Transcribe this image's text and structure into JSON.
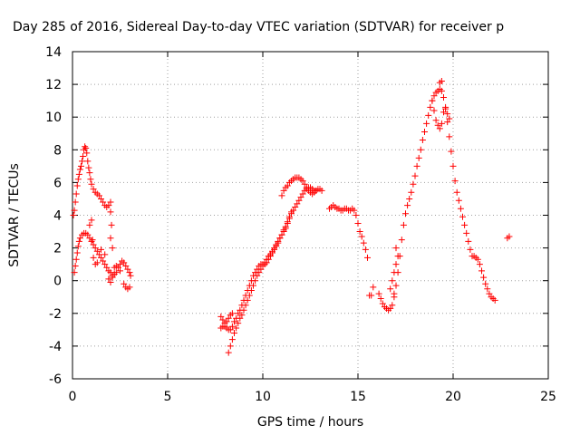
{
  "chart_data": {
    "type": "scatter",
    "title": "Day 285 of 2016, Sidereal Day-to-day VTEC variation (SDTVAR) for receiver p",
    "xlabel": "GPS time / hours",
    "ylabel": "SDTVAR / TECUs",
    "xlim": [
      0,
      25
    ],
    "ylim": [
      -6,
      14
    ],
    "xticks": [
      0,
      5,
      10,
      15,
      20,
      25
    ],
    "yticks": [
      -6,
      -4,
      -2,
      0,
      2,
      4,
      6,
      8,
      10,
      12,
      14
    ],
    "grid": true,
    "marker": "plus",
    "color": "#ff0000",
    "series": [
      {
        "points": [
          [
            0.05,
            4.0
          ],
          [
            0.1,
            4.3
          ],
          [
            0.15,
            4.8
          ],
          [
            0.2,
            5.3
          ],
          [
            0.25,
            5.8
          ],
          [
            0.3,
            6.2
          ],
          [
            0.35,
            6.5
          ],
          [
            0.4,
            6.8
          ],
          [
            0.45,
            7.0
          ],
          [
            0.5,
            7.3
          ],
          [
            0.55,
            7.6
          ],
          [
            0.6,
            8.0
          ],
          [
            0.65,
            8.2
          ],
          [
            0.7,
            8.1
          ],
          [
            0.75,
            7.8
          ],
          [
            0.8,
            7.3
          ],
          [
            0.85,
            6.9
          ],
          [
            0.9,
            6.6
          ],
          [
            0.95,
            6.2
          ],
          [
            1.0,
            5.9
          ],
          [
            1.1,
            5.6
          ],
          [
            1.2,
            5.4
          ],
          [
            1.3,
            5.3
          ],
          [
            1.4,
            5.2
          ],
          [
            1.5,
            5.0
          ],
          [
            1.6,
            4.8
          ],
          [
            1.7,
            4.6
          ],
          [
            1.8,
            4.5
          ],
          [
            1.9,
            4.6
          ],
          [
            2.0,
            4.8
          ],
          [
            2.0,
            4.2
          ],
          [
            2.05,
            3.4
          ],
          [
            2.0,
            2.6
          ],
          [
            2.1,
            2.0
          ]
        ]
      },
      {
        "points": [
          [
            0.1,
            0.5
          ],
          [
            0.15,
            0.9
          ],
          [
            0.2,
            1.3
          ],
          [
            0.25,
            1.7
          ],
          [
            0.3,
            2.1
          ],
          [
            0.35,
            2.4
          ],
          [
            0.4,
            2.6
          ],
          [
            0.5,
            2.8
          ],
          [
            0.6,
            2.9
          ],
          [
            0.7,
            2.9
          ],
          [
            0.8,
            2.8
          ],
          [
            0.9,
            2.6
          ],
          [
            1.0,
            2.4
          ],
          [
            1.1,
            2.2
          ],
          [
            1.2,
            2.0
          ],
          [
            1.3,
            1.8
          ],
          [
            1.4,
            1.6
          ],
          [
            1.5,
            1.4
          ],
          [
            1.6,
            1.2
          ],
          [
            1.7,
            1.0
          ],
          [
            1.8,
            0.8
          ],
          [
            1.9,
            0.6
          ],
          [
            2.0,
            0.5
          ],
          [
            2.1,
            0.3
          ],
          [
            2.2,
            0.4
          ],
          [
            2.3,
            0.5
          ],
          [
            2.4,
            0.8
          ],
          [
            2.5,
            1.0
          ],
          [
            2.6,
            1.2
          ],
          [
            2.7,
            1.1
          ],
          [
            2.8,
            0.9
          ],
          [
            2.9,
            0.7
          ],
          [
            3.0,
            0.5
          ],
          [
            3.05,
            0.3
          ],
          [
            0.9,
            3.4
          ],
          [
            1.0,
            3.7
          ],
          [
            1.05,
            2.5
          ],
          [
            1.1,
            1.4
          ],
          [
            1.2,
            1.0
          ],
          [
            1.3,
            1.1
          ],
          [
            1.5,
            1.9
          ],
          [
            1.7,
            1.6
          ],
          [
            2.2,
            0.8
          ],
          [
            2.3,
            0.9
          ],
          [
            2.5,
            0.6
          ],
          [
            2.7,
            -0.2
          ],
          [
            2.8,
            -0.4
          ],
          [
            2.9,
            -0.5
          ],
          [
            3.0,
            -0.4
          ],
          [
            1.9,
            0.1
          ],
          [
            2.0,
            -0.1
          ],
          [
            2.1,
            0.2
          ]
        ]
      },
      {
        "points": [
          [
            7.8,
            -2.9
          ],
          [
            7.9,
            -2.8
          ],
          [
            8.0,
            -2.8
          ],
          [
            8.1,
            -2.9
          ],
          [
            8.2,
            -3.0
          ],
          [
            8.3,
            -3.0
          ],
          [
            8.4,
            -2.8
          ],
          [
            8.5,
            -2.5
          ],
          [
            8.6,
            -2.3
          ],
          [
            8.7,
            -2.0
          ],
          [
            8.8,
            -1.8
          ],
          [
            8.9,
            -1.5
          ],
          [
            9.0,
            -1.2
          ],
          [
            9.1,
            -0.9
          ],
          [
            9.2,
            -0.6
          ],
          [
            9.3,
            -0.3
          ],
          [
            9.4,
            0.0
          ],
          [
            9.5,
            0.3
          ],
          [
            9.6,
            0.5
          ],
          [
            9.7,
            0.7
          ],
          [
            9.8,
            0.9
          ],
          [
            9.9,
            1.0
          ],
          [
            10.0,
            1.0
          ],
          [
            10.1,
            1.0
          ],
          [
            10.2,
            1.1
          ],
          [
            10.3,
            1.3
          ],
          [
            10.4,
            1.5
          ],
          [
            10.5,
            1.7
          ],
          [
            10.6,
            1.9
          ],
          [
            10.7,
            2.1
          ],
          [
            10.8,
            2.3
          ],
          [
            10.9,
            2.6
          ],
          [
            11.0,
            2.8
          ],
          [
            11.1,
            3.1
          ],
          [
            11.2,
            3.3
          ],
          [
            11.3,
            3.6
          ],
          [
            11.4,
            3.9
          ],
          [
            11.5,
            4.2
          ]
        ]
      },
      {
        "points": [
          [
            8.2,
            -4.4
          ],
          [
            8.3,
            -4.0
          ],
          [
            8.4,
            -3.6
          ],
          [
            8.5,
            -3.2
          ],
          [
            8.6,
            -2.9
          ],
          [
            8.7,
            -2.6
          ],
          [
            8.8,
            -2.3
          ],
          [
            8.9,
            -2.1
          ],
          [
            9.0,
            -1.8
          ],
          [
            9.1,
            -1.5
          ],
          [
            9.2,
            -1.2
          ],
          [
            9.3,
            -0.9
          ],
          [
            9.4,
            -0.6
          ],
          [
            9.5,
            -0.3
          ],
          [
            9.6,
            0.0
          ],
          [
            9.7,
            0.3
          ],
          [
            9.8,
            0.5
          ],
          [
            9.9,
            0.7
          ],
          [
            10.0,
            0.9
          ],
          [
            10.1,
            1.1
          ],
          [
            10.2,
            1.3
          ],
          [
            10.3,
            1.5
          ],
          [
            10.4,
            1.6
          ],
          [
            10.5,
            1.8
          ],
          [
            10.6,
            2.0
          ],
          [
            10.7,
            2.2
          ],
          [
            10.8,
            2.4
          ],
          [
            10.9,
            2.6
          ],
          [
            11.0,
            2.8
          ],
          [
            11.1,
            3.0
          ],
          [
            11.2,
            3.2
          ],
          [
            11.3,
            3.5
          ],
          [
            11.4,
            3.8
          ],
          [
            11.5,
            4.1
          ],
          [
            11.6,
            4.3
          ],
          [
            11.7,
            4.5
          ],
          [
            11.8,
            4.7
          ],
          [
            11.9,
            4.9
          ],
          [
            12.0,
            5.1
          ],
          [
            12.1,
            5.3
          ],
          [
            12.2,
            5.5
          ],
          [
            12.3,
            5.6
          ],
          [
            12.4,
            5.7
          ],
          [
            12.5,
            5.7
          ],
          [
            12.6,
            5.6
          ],
          [
            12.7,
            5.5
          ],
          [
            12.8,
            5.5
          ],
          [
            12.9,
            5.6
          ],
          [
            13.0,
            5.6
          ],
          [
            13.1,
            5.5
          ],
          [
            7.8,
            -2.2
          ],
          [
            7.9,
            -2.4
          ],
          [
            8.0,
            -2.6
          ],
          [
            8.1,
            -2.5
          ],
          [
            8.2,
            -2.3
          ],
          [
            8.3,
            -2.1
          ],
          [
            8.4,
            -2.0
          ],
          [
            11.0,
            5.2
          ],
          [
            11.1,
            5.5
          ],
          [
            11.2,
            5.7
          ],
          [
            11.3,
            5.8
          ],
          [
            11.4,
            6.0
          ],
          [
            11.5,
            6.1
          ],
          [
            11.6,
            6.2
          ],
          [
            11.7,
            6.3
          ],
          [
            11.8,
            6.3
          ],
          [
            11.9,
            6.3
          ],
          [
            12.0,
            6.2
          ],
          [
            12.1,
            6.1
          ],
          [
            12.2,
            5.9
          ],
          [
            12.3,
            5.7
          ],
          [
            12.4,
            5.5
          ],
          [
            12.5,
            5.4
          ],
          [
            12.6,
            5.3
          ],
          [
            12.7,
            5.4
          ],
          [
            12.8,
            5.5
          ]
        ]
      },
      {
        "points": [
          [
            13.5,
            4.4
          ],
          [
            13.6,
            4.5
          ],
          [
            13.7,
            4.6
          ],
          [
            13.8,
            4.5
          ],
          [
            13.9,
            4.4
          ],
          [
            14.0,
            4.4
          ],
          [
            14.1,
            4.3
          ],
          [
            14.2,
            4.3
          ],
          [
            14.3,
            4.4
          ],
          [
            14.4,
            4.4
          ],
          [
            14.5,
            4.3
          ],
          [
            14.6,
            4.3
          ],
          [
            14.7,
            4.4
          ],
          [
            14.8,
            4.3
          ],
          [
            14.9,
            4.0
          ],
          [
            15.0,
            3.5
          ],
          [
            15.1,
            3.0
          ],
          [
            15.2,
            2.7
          ],
          [
            15.3,
            2.3
          ],
          [
            15.4,
            1.9
          ],
          [
            15.5,
            1.4
          ]
        ]
      },
      {
        "points": [
          [
            15.6,
            -0.9
          ],
          [
            15.7,
            -0.9
          ],
          [
            15.8,
            -0.4
          ],
          [
            16.1,
            -0.8
          ],
          [
            16.2,
            -1.1
          ],
          [
            16.3,
            -1.4
          ],
          [
            16.4,
            -1.6
          ],
          [
            16.5,
            -1.7
          ],
          [
            16.6,
            -1.8
          ],
          [
            16.7,
            -1.7
          ],
          [
            16.8,
            -1.5
          ],
          [
            16.9,
            -1.0
          ],
          [
            17.0,
            -0.3
          ],
          [
            17.1,
            0.5
          ],
          [
            17.2,
            1.5
          ],
          [
            17.3,
            2.5
          ],
          [
            17.4,
            3.4
          ],
          [
            17.5,
            4.1
          ],
          [
            17.6,
            4.6
          ],
          [
            17.7,
            5.0
          ],
          [
            17.8,
            5.4
          ],
          [
            17.9,
            5.9
          ],
          [
            18.0,
            6.4
          ],
          [
            18.1,
            7.0
          ],
          [
            18.2,
            7.5
          ],
          [
            18.3,
            8.0
          ],
          [
            18.4,
            8.6
          ],
          [
            18.5,
            9.1
          ],
          [
            18.6,
            9.6
          ],
          [
            18.7,
            10.1
          ],
          [
            18.8,
            10.6
          ],
          [
            18.9,
            11.0
          ],
          [
            19.0,
            11.3
          ],
          [
            19.1,
            11.5
          ],
          [
            19.2,
            11.6
          ],
          [
            19.3,
            11.7
          ],
          [
            19.4,
            11.6
          ],
          [
            19.5,
            11.2
          ],
          [
            19.6,
            10.5
          ],
          [
            19.7,
            9.7
          ],
          [
            19.8,
            8.8
          ],
          [
            19.9,
            7.9
          ],
          [
            20.0,
            7.0
          ],
          [
            20.1,
            6.1
          ],
          [
            20.2,
            5.4
          ],
          [
            20.3,
            4.9
          ],
          [
            20.4,
            4.4
          ],
          [
            20.5,
            3.9
          ],
          [
            20.6,
            3.4
          ],
          [
            20.7,
            2.9
          ],
          [
            20.8,
            2.4
          ],
          [
            20.9,
            1.9
          ],
          [
            21.0,
            1.5
          ],
          [
            21.1,
            1.5
          ],
          [
            21.2,
            1.4
          ],
          [
            21.3,
            1.3
          ],
          [
            21.4,
            1.0
          ],
          [
            21.5,
            0.6
          ],
          [
            21.6,
            0.2
          ],
          [
            21.7,
            -0.2
          ],
          [
            21.8,
            -0.5
          ],
          [
            21.9,
            -0.8
          ],
          [
            22.0,
            -1.0
          ],
          [
            22.1,
            -1.1
          ],
          [
            22.2,
            -1.2
          ],
          [
            16.9,
            0.5
          ],
          [
            17.0,
            1.0
          ],
          [
            17.1,
            1.5
          ],
          [
            17.0,
            2.0
          ],
          [
            16.8,
            0.0
          ],
          [
            16.7,
            -0.5
          ],
          [
            16.9,
            -0.8
          ],
          [
            18.9,
            11.0
          ],
          [
            19.0,
            10.4
          ],
          [
            19.1,
            9.8
          ],
          [
            19.2,
            9.5
          ],
          [
            19.3,
            9.3
          ],
          [
            19.4,
            9.6
          ],
          [
            19.5,
            10.3
          ],
          [
            19.6,
            10.6
          ],
          [
            19.7,
            10.2
          ],
          [
            19.8,
            9.9
          ],
          [
            19.3,
            12.1
          ],
          [
            19.4,
            12.2
          ],
          [
            22.85,
            2.6
          ],
          [
            22.95,
            2.7
          ]
        ]
      }
    ]
  }
}
